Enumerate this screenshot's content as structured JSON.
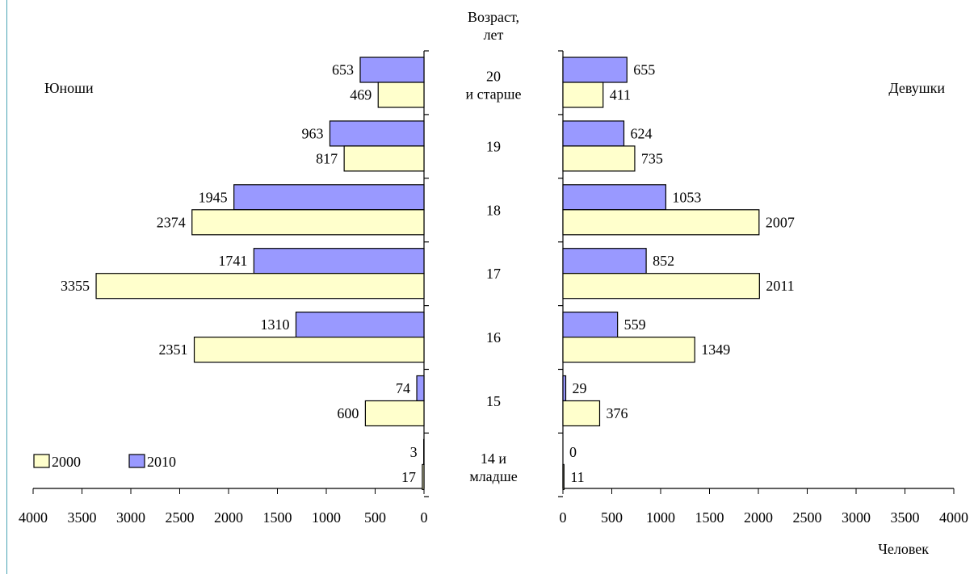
{
  "chart_data": {
    "type": "bar",
    "orientation": "horizontal",
    "layout": "population-pyramid",
    "categories_title": "Возраст,\nлет",
    "categories": [
      "20\nи старше",
      "19",
      "18",
      "17",
      "16",
      "15",
      "14 и\nмладше"
    ],
    "series": [
      {
        "name": "2000",
        "color": "#ffffcc"
      },
      {
        "name": "2010",
        "color": "#9999ff"
      }
    ],
    "panels": [
      {
        "side": "left",
        "label": "Юноши",
        "values": {
          "2010": [
            653,
            963,
            1945,
            1741,
            1310,
            74,
            3
          ],
          "2000": [
            469,
            817,
            2374,
            3355,
            2351,
            600,
            17
          ]
        }
      },
      {
        "side": "right",
        "label": "Девушки",
        "values": {
          "2010": [
            655,
            624,
            1053,
            852,
            559,
            29,
            0
          ],
          "2000": [
            411,
            735,
            2007,
            2011,
            1349,
            376,
            11
          ]
        }
      }
    ],
    "xlim": [
      0,
      4000
    ],
    "x_ticks": [
      0,
      500,
      1000,
      1500,
      2000,
      2500,
      3000,
      3500,
      4000
    ],
    "xlabel": "Человек",
    "legend_position": "bottom-left",
    "grid": false
  }
}
